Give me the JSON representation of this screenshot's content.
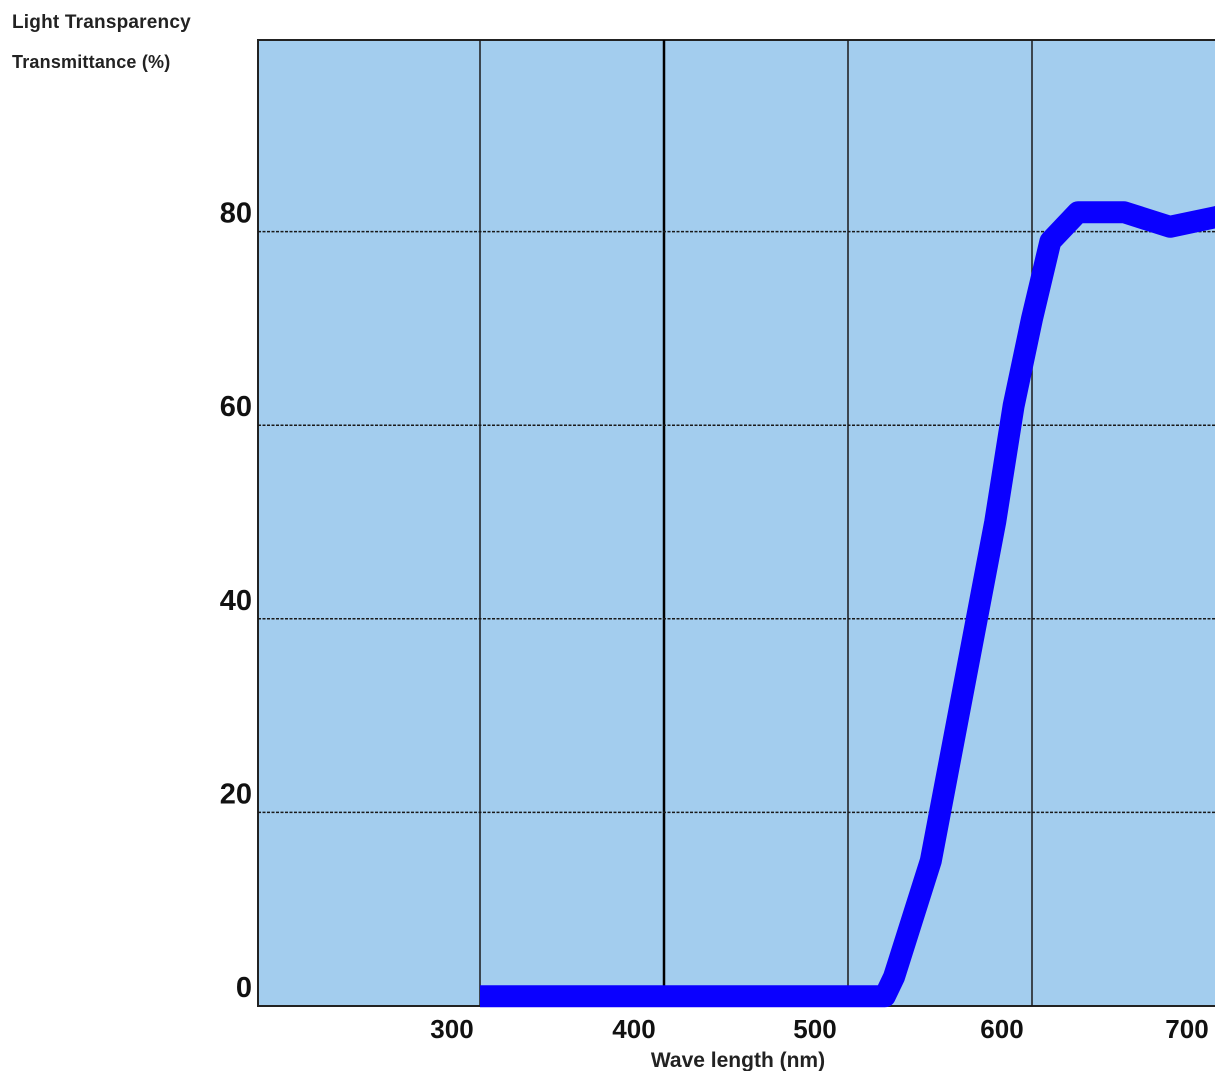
{
  "chart_data": {
    "type": "line",
    "title": "Light Transparency",
    "ylabel": "Transmittance (%)",
    "xlabel": "Wave length (nm)",
    "x_ticks": [
      300,
      400,
      500,
      600,
      700
    ],
    "y_ticks": [
      0,
      20,
      40,
      60,
      80
    ],
    "xlim": [
      200,
      710
    ],
    "ylim": [
      0,
      100
    ],
    "grid": true,
    "colors": {
      "background": "#a3cdee",
      "line": "#0a00ff",
      "grid": "#1a1a1a"
    },
    "series": [
      {
        "x": [
          300,
          520,
          525,
          545,
          555,
          570,
          580,
          590,
          600,
          610,
          625,
          650,
          675,
          700,
          710
        ],
        "y": [
          1,
          1,
          3,
          15,
          25,
          40,
          50,
          62,
          71,
          79,
          82,
          82,
          80.5,
          81.5,
          82
        ]
      }
    ]
  }
}
